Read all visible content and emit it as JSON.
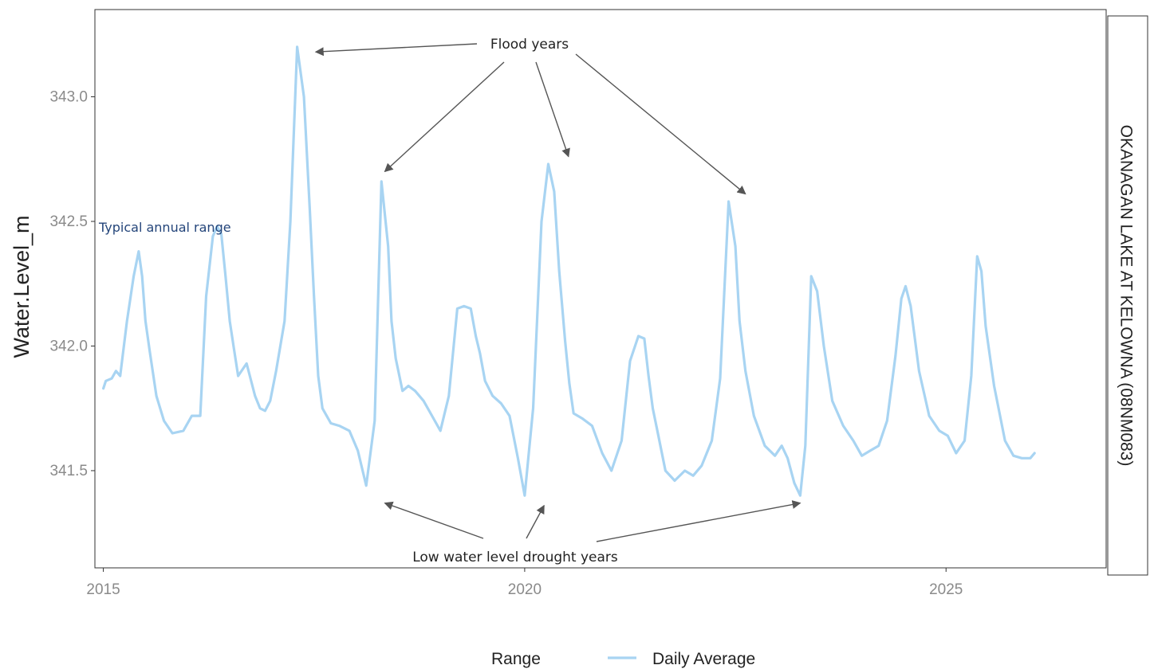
{
  "chart_data": {
    "type": "line",
    "title": "",
    "xlabel": "",
    "ylabel": "Water.Level_m",
    "facet_label": "OKANAGAN LAKE AT KELOWNA (08NM083)",
    "xlim": [
      2014.9,
      2026.9
    ],
    "ylim": [
      341.11,
      343.35
    ],
    "x_ticks": [
      2015,
      2020,
      2025
    ],
    "x_tick_labels": [
      "2015",
      "2020",
      "2025"
    ],
    "y_ticks": [
      341.5,
      342.0,
      342.5,
      343.0
    ],
    "y_tick_labels": [
      "341.5",
      "342.0",
      "342.5",
      "343.0"
    ],
    "grid": false,
    "legend": {
      "position": "bottom",
      "title": "Range",
      "entries": [
        "Daily Average"
      ]
    },
    "colors": {
      "series": "#a8d4f2",
      "arrow": "#555555",
      "typical_text": "#24457a"
    },
    "series": [
      {
        "name": "Daily Average",
        "x": [
          2015.0,
          2015.03,
          2015.1,
          2015.15,
          2015.2,
          2015.28,
          2015.36,
          2015.42,
          2015.46,
          2015.5,
          2015.55,
          2015.63,
          2015.72,
          2015.82,
          2015.95,
          2016.05,
          2016.15,
          2016.22,
          2016.3,
          2016.35,
          2016.4,
          2016.45,
          2016.5,
          2016.55,
          2016.6,
          2016.7,
          2016.8,
          2016.86,
          2016.92,
          2016.98,
          2017.05,
          2017.15,
          2017.22,
          2017.3,
          2017.38,
          2017.45,
          2017.5,
          2017.55,
          2017.6,
          2017.7,
          2017.8,
          2017.92,
          2018.02,
          2018.12,
          2018.22,
          2018.3,
          2018.38,
          2018.42,
          2018.47,
          2018.55,
          2018.62,
          2018.7,
          2018.8,
          2018.9,
          2019.0,
          2019.1,
          2019.2,
          2019.28,
          2019.36,
          2019.42,
          2019.47,
          2019.53,
          2019.62,
          2019.72,
          2019.82,
          2019.92,
          2020.0,
          2020.1,
          2020.2,
          2020.28,
          2020.35,
          2020.41,
          2020.48,
          2020.53,
          2020.58,
          2020.68,
          2020.8,
          2020.92,
          2021.03,
          2021.15,
          2021.25,
          2021.35,
          2021.42,
          2021.47,
          2021.52,
          2021.58,
          2021.67,
          2021.78,
          2021.9,
          2022.0,
          2022.1,
          2022.22,
          2022.32,
          2022.42,
          2022.5,
          2022.55,
          2022.62,
          2022.72,
          2022.85,
          2022.97,
          2023.05,
          2023.12,
          2023.2,
          2023.27,
          2023.33,
          2023.4,
          2023.47,
          2023.55,
          2023.65,
          2023.78,
          2023.9,
          2024.0,
          2024.1,
          2024.2,
          2024.3,
          2024.4,
          2024.47,
          2024.52,
          2024.58,
          2024.68,
          2024.8,
          2024.92,
          2025.02,
          2025.12,
          2025.22,
          2025.3,
          2025.37,
          2025.42,
          2025.47,
          2025.57,
          2025.7,
          2025.8,
          2025.9,
          2026.0,
          2026.05
        ],
        "values": [
          341.83,
          341.86,
          341.87,
          341.9,
          341.88,
          342.1,
          342.28,
          342.38,
          342.28,
          342.1,
          341.98,
          341.8,
          341.7,
          341.65,
          341.66,
          341.72,
          341.72,
          342.2,
          342.44,
          342.48,
          342.45,
          342.28,
          342.1,
          341.99,
          341.88,
          341.93,
          341.8,
          341.75,
          341.74,
          341.78,
          341.9,
          342.1,
          342.5,
          343.2,
          343.0,
          342.55,
          342.2,
          341.88,
          341.75,
          341.69,
          341.68,
          341.66,
          341.58,
          341.44,
          341.7,
          342.66,
          342.4,
          342.1,
          341.95,
          341.82,
          341.84,
          341.82,
          341.78,
          341.72,
          341.66,
          341.8,
          342.15,
          342.16,
          342.15,
          342.04,
          341.97,
          341.86,
          341.8,
          341.77,
          341.72,
          341.55,
          341.4,
          341.75,
          342.5,
          342.73,
          342.62,
          342.3,
          342.02,
          341.85,
          341.73,
          341.71,
          341.68,
          341.57,
          341.5,
          341.62,
          341.94,
          342.04,
          342.03,
          341.88,
          341.75,
          341.65,
          341.5,
          341.46,
          341.5,
          341.48,
          341.52,
          341.62,
          341.87,
          342.58,
          342.4,
          342.1,
          341.9,
          341.72,
          341.6,
          341.56,
          341.6,
          341.55,
          341.45,
          341.4,
          341.6,
          342.28,
          342.22,
          342.0,
          341.78,
          341.68,
          341.62,
          341.56,
          341.58,
          341.6,
          341.7,
          341.96,
          342.19,
          342.24,
          342.16,
          341.9,
          341.72,
          341.66,
          341.64,
          341.57,
          341.62,
          341.88,
          342.36,
          342.3,
          342.08,
          341.84,
          341.62,
          341.56,
          341.55,
          341.55,
          341.57
        ]
      }
    ],
    "annotations": {
      "flood_label": "Flood years",
      "drought_label": "Low water level drought years",
      "typical_label": "Typical annual range",
      "flood_points": [
        {
          "x": 2017.52,
          "y": 343.18
        },
        {
          "x": 2018.34,
          "y": 342.7
        },
        {
          "x": 2020.52,
          "y": 342.76
        },
        {
          "x": 2022.62,
          "y": 342.61
        }
      ],
      "drought_points": [
        {
          "x": 2018.34,
          "y": 341.37
        },
        {
          "x": 2020.23,
          "y": 341.36
        },
        {
          "x": 2023.27,
          "y": 341.37
        }
      ]
    }
  }
}
